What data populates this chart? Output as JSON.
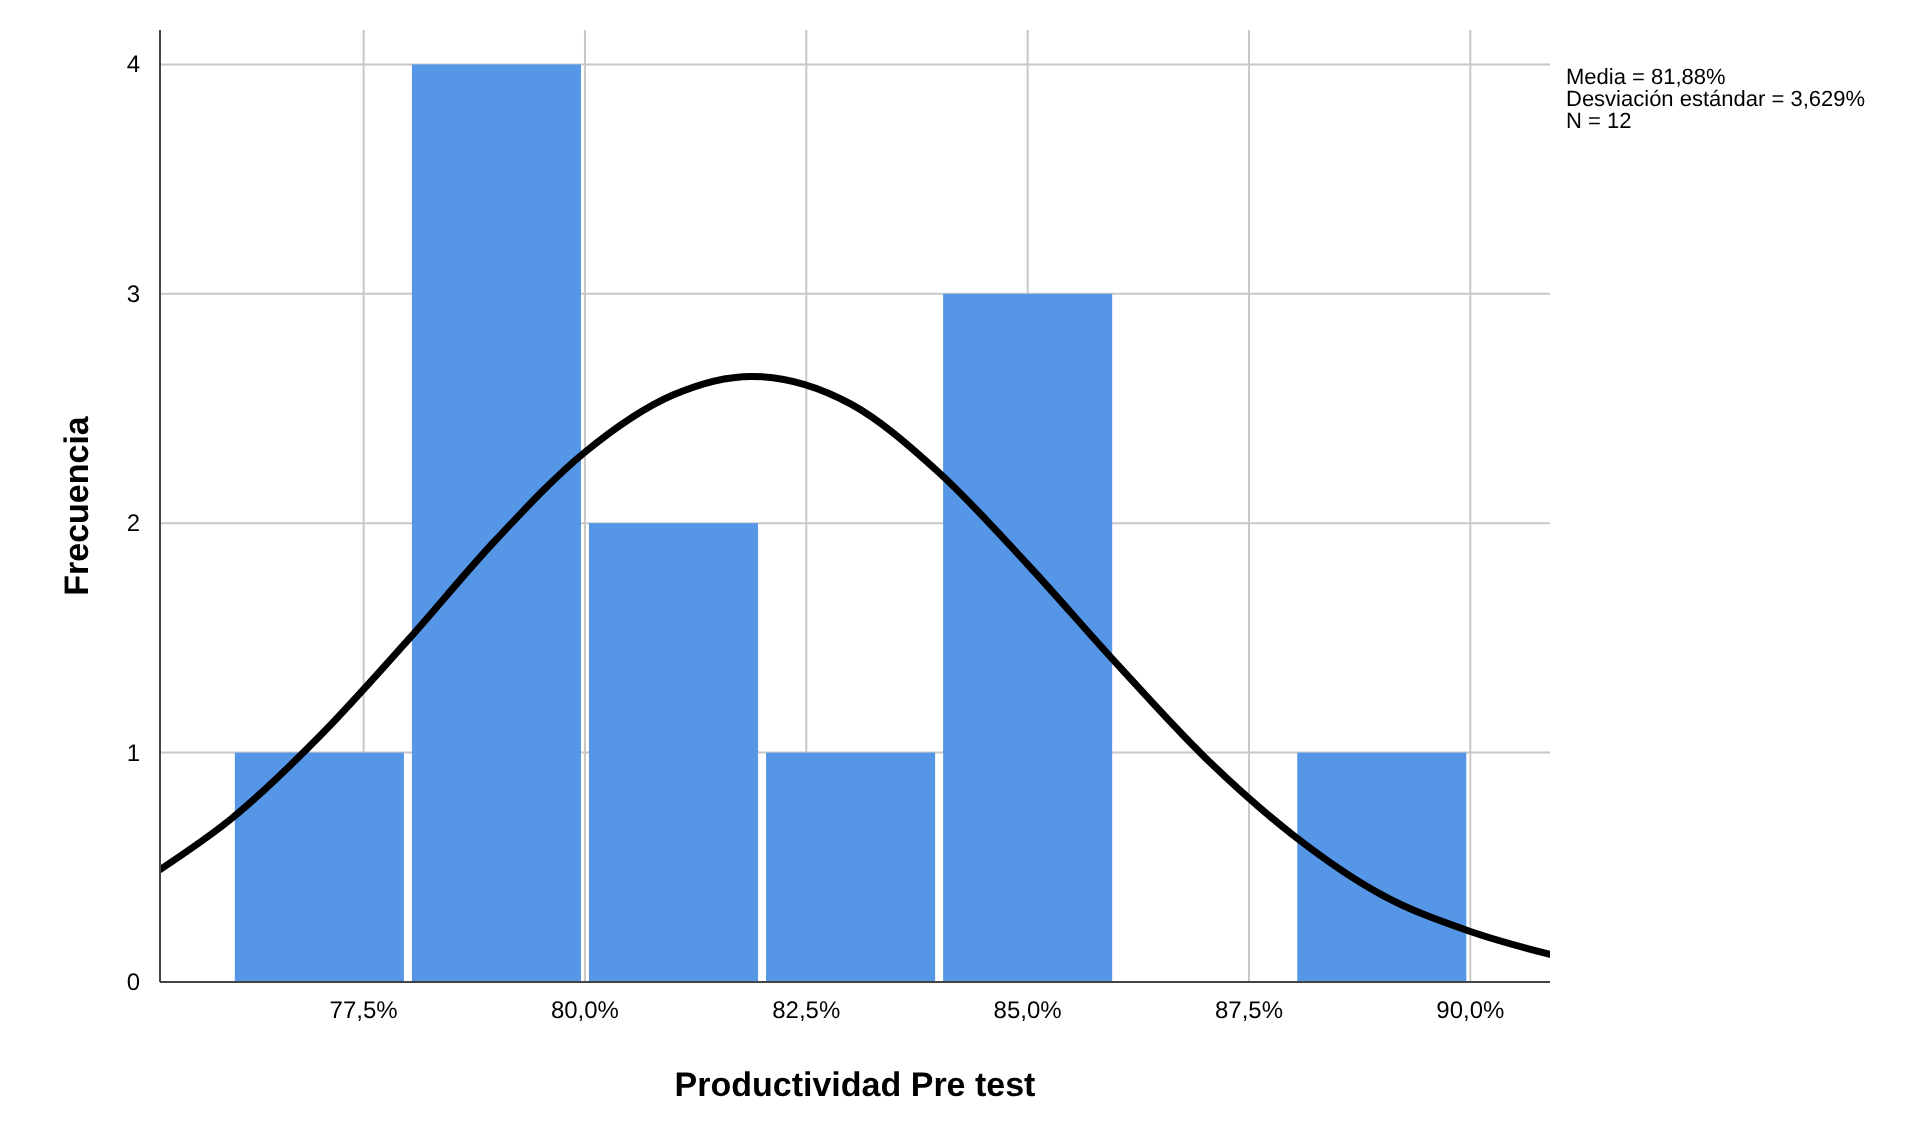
{
  "chart_data": {
    "type": "histogram",
    "xlabel": "Productividad Pre test",
    "ylabel": "Frecuencia",
    "annotations": [
      "Media = 81,88%",
      "Desviación estándar = 3,629%",
      "N = 12"
    ],
    "bins": [
      76,
      78,
      80,
      82,
      84,
      86,
      88,
      90
    ],
    "values": [
      1,
      4,
      2,
      1,
      3,
      0,
      1
    ],
    "color": "#5596e6",
    "series": [
      {
        "type": "line",
        "color": "#000000",
        "x": [
          75.2,
          76,
          77,
          78,
          79,
          80,
          81,
          81.88,
          83,
          84,
          85,
          86,
          87,
          88,
          89,
          90,
          90.9
        ],
        "values": [
          0.49,
          0.71,
          1.07,
          1.49,
          1.93,
          2.31,
          2.56,
          2.64,
          2.52,
          2.22,
          1.82,
          1.39,
          0.98,
          0.64,
          0.38,
          0.22,
          0.12
        ]
      }
    ],
    "xlim": [
      75.2,
      90.9
    ],
    "ylim": [
      0,
      4.15
    ],
    "xticks": [
      {
        "value": 77.5,
        "label": "77,5%"
      },
      {
        "value": 80,
        "label": "80,0%"
      },
      {
        "value": 82.5,
        "label": "82,5%"
      },
      {
        "value": 85,
        "label": "85,0%"
      },
      {
        "value": 87.5,
        "label": "87,5%"
      },
      {
        "value": 90,
        "label": "90,0%"
      }
    ],
    "yticks": [
      0,
      1,
      2,
      3,
      4
    ],
    "grid": true
  }
}
